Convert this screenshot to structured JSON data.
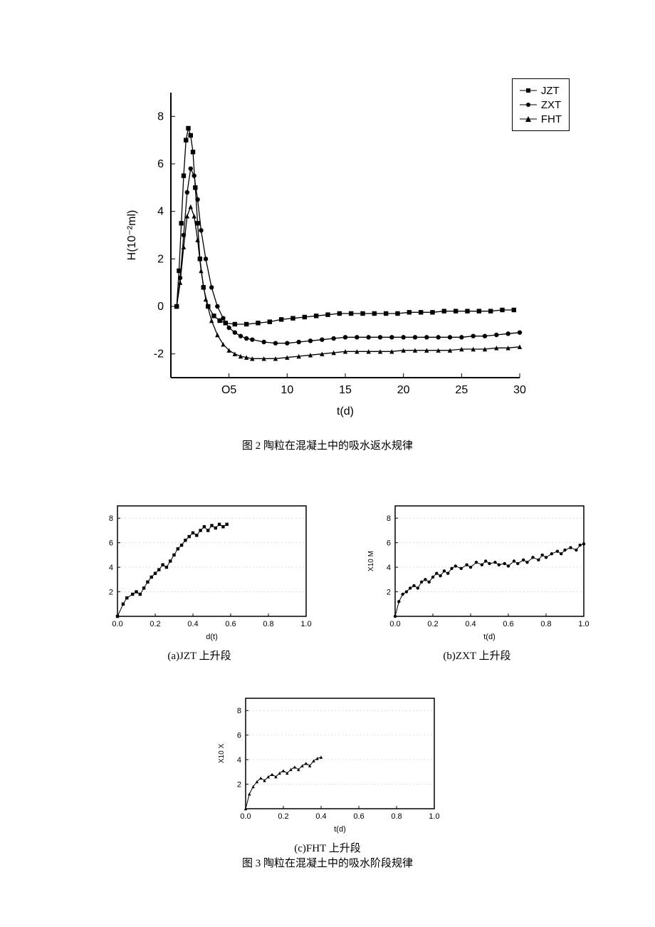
{
  "main_chart": {
    "type": "line-scatter",
    "xlabel": "t(d)",
    "ylabel": "H(10⁻²ml)",
    "xlim": [
      0,
      30
    ],
    "ylim": [
      -3,
      9
    ],
    "xticks": [
      5,
      10,
      15,
      20,
      25,
      30
    ],
    "xtick_label_0": "O5",
    "yticks": [
      -2,
      0,
      2,
      4,
      6,
      8
    ],
    "legend": [
      {
        "marker": "square",
        "label": "JZT"
      },
      {
        "marker": "circle",
        "label": "ZXT"
      },
      {
        "marker": "triangle",
        "label": "FHT"
      }
    ],
    "series": {
      "JZT": {
        "marker": "square",
        "color": "#000000",
        "points": [
          [
            0.5,
            0
          ],
          [
            0.7,
            1.5
          ],
          [
            0.9,
            3.5
          ],
          [
            1.1,
            5.5
          ],
          [
            1.3,
            7
          ],
          [
            1.5,
            7.5
          ],
          [
            1.7,
            7.2
          ],
          [
            1.9,
            6.5
          ],
          [
            2.1,
            5
          ],
          [
            2.3,
            3.5
          ],
          [
            2.5,
            2
          ],
          [
            2.8,
            0.8
          ],
          [
            3.2,
            0
          ],
          [
            3.7,
            -0.4
          ],
          [
            4.2,
            -0.6
          ],
          [
            4.7,
            -0.7
          ],
          [
            5.5,
            -0.75
          ],
          [
            6.5,
            -0.75
          ],
          [
            7.5,
            -0.7
          ],
          [
            8.5,
            -0.65
          ],
          [
            9.5,
            -0.55
          ],
          [
            10.5,
            -0.5
          ],
          [
            11.5,
            -0.45
          ],
          [
            12.5,
            -0.4
          ],
          [
            13.5,
            -0.35
          ],
          [
            14.5,
            -0.3
          ],
          [
            15.5,
            -0.3
          ],
          [
            16.5,
            -0.3
          ],
          [
            17.5,
            -0.3
          ],
          [
            18.5,
            -0.3
          ],
          [
            19.5,
            -0.3
          ],
          [
            20.5,
            -0.25
          ],
          [
            21.5,
            -0.25
          ],
          [
            22.5,
            -0.25
          ],
          [
            23.5,
            -0.2
          ],
          [
            24.5,
            -0.2
          ],
          [
            25.5,
            -0.2
          ],
          [
            26.5,
            -0.2
          ],
          [
            27.5,
            -0.2
          ],
          [
            28.5,
            -0.15
          ],
          [
            29.5,
            -0.15
          ]
        ]
      },
      "ZXT": {
        "marker": "circle",
        "color": "#000000",
        "points": [
          [
            0.5,
            0
          ],
          [
            0.8,
            1.2
          ],
          [
            1.1,
            3
          ],
          [
            1.4,
            4.8
          ],
          [
            1.7,
            5.8
          ],
          [
            2,
            5.5
          ],
          [
            2.3,
            4.5
          ],
          [
            2.6,
            3.2
          ],
          [
            3,
            2
          ],
          [
            3.5,
            0.8
          ],
          [
            4,
            0
          ],
          [
            4.5,
            -0.5
          ],
          [
            5,
            -0.9
          ],
          [
            5.5,
            -1.1
          ],
          [
            6,
            -1.25
          ],
          [
            6.5,
            -1.35
          ],
          [
            7,
            -1.4
          ],
          [
            8,
            -1.5
          ],
          [
            9,
            -1.55
          ],
          [
            10,
            -1.55
          ],
          [
            11,
            -1.5
          ],
          [
            12,
            -1.45
          ],
          [
            13,
            -1.4
          ],
          [
            14,
            -1.35
          ],
          [
            15,
            -1.3
          ],
          [
            16,
            -1.3
          ],
          [
            17,
            -1.3
          ],
          [
            18,
            -1.3
          ],
          [
            19,
            -1.3
          ],
          [
            20,
            -1.3
          ],
          [
            21,
            -1.3
          ],
          [
            22,
            -1.3
          ],
          [
            23,
            -1.3
          ],
          [
            24,
            -1.3
          ],
          [
            25,
            -1.3
          ],
          [
            26,
            -1.25
          ],
          [
            27,
            -1.25
          ],
          [
            28,
            -1.2
          ],
          [
            29,
            -1.15
          ],
          [
            30,
            -1.1
          ]
        ]
      },
      "FHT": {
        "marker": "triangle",
        "color": "#000000",
        "points": [
          [
            0.5,
            0
          ],
          [
            0.8,
            1
          ],
          [
            1.1,
            2.5
          ],
          [
            1.4,
            3.8
          ],
          [
            1.7,
            4.2
          ],
          [
            2,
            3.8
          ],
          [
            2.3,
            2.8
          ],
          [
            2.6,
            1.5
          ],
          [
            3,
            0.3
          ],
          [
            3.5,
            -0.6
          ],
          [
            4,
            -1.2
          ],
          [
            4.5,
            -1.6
          ],
          [
            5,
            -1.85
          ],
          [
            5.5,
            -2
          ],
          [
            6,
            -2.1
          ],
          [
            6.5,
            -2.15
          ],
          [
            7,
            -2.2
          ],
          [
            8,
            -2.2
          ],
          [
            9,
            -2.2
          ],
          [
            10,
            -2.15
          ],
          [
            11,
            -2.1
          ],
          [
            12,
            -2.05
          ],
          [
            13,
            -2
          ],
          [
            14,
            -1.95
          ],
          [
            15,
            -1.9
          ],
          [
            16,
            -1.9
          ],
          [
            17,
            -1.9
          ],
          [
            18,
            -1.9
          ],
          [
            19,
            -1.9
          ],
          [
            20,
            -1.85
          ],
          [
            21,
            -1.85
          ],
          [
            22,
            -1.85
          ],
          [
            23,
            -1.85
          ],
          [
            24,
            -1.85
          ],
          [
            25,
            -1.8
          ],
          [
            26,
            -1.8
          ],
          [
            27,
            -1.8
          ],
          [
            28,
            -1.75
          ],
          [
            29,
            -1.75
          ],
          [
            30,
            -1.7
          ]
        ]
      }
    },
    "colors": {
      "axis": "#000000",
      "background": "#ffffff",
      "grid": "#dddddd"
    }
  },
  "caption_fig2": "图 2 陶粒在混凝土中的吸水返水规律",
  "sub_a": {
    "label": "(a)JZT 上升段",
    "type": "line-scatter",
    "marker": "square",
    "xlabel": "d(t)",
    "ylabel": "",
    "xlim": [
      0,
      1
    ],
    "ylim": [
      0,
      9
    ],
    "xticks": [
      0.0,
      0.2,
      0.4,
      0.6,
      0.8,
      1.0
    ],
    "yticks": [
      2,
      4,
      6,
      8
    ],
    "points": [
      [
        0,
        0
      ],
      [
        0.03,
        1
      ],
      [
        0.05,
        1.5
      ],
      [
        0.08,
        1.8
      ],
      [
        0.1,
        2
      ],
      [
        0.12,
        1.8
      ],
      [
        0.14,
        2.3
      ],
      [
        0.16,
        2.8
      ],
      [
        0.18,
        3.2
      ],
      [
        0.2,
        3.5
      ],
      [
        0.22,
        3.8
      ],
      [
        0.24,
        4.2
      ],
      [
        0.26,
        4
      ],
      [
        0.28,
        4.5
      ],
      [
        0.3,
        5
      ],
      [
        0.32,
        5.5
      ],
      [
        0.34,
        5.8
      ],
      [
        0.36,
        6.2
      ],
      [
        0.38,
        6.5
      ],
      [
        0.4,
        6.8
      ],
      [
        0.42,
        6.6
      ],
      [
        0.44,
        7
      ],
      [
        0.46,
        7.3
      ],
      [
        0.48,
        7
      ],
      [
        0.5,
        7.4
      ],
      [
        0.52,
        7.2
      ],
      [
        0.54,
        7.5
      ],
      [
        0.56,
        7.3
      ],
      [
        0.58,
        7.5
      ]
    ],
    "grid_color": "#dddddd",
    "marker_color": "#000000"
  },
  "sub_b": {
    "label": "(b)ZXT 上升段",
    "type": "line-scatter",
    "marker": "circle",
    "xlabel": "t(d)",
    "ylabel": "X10 M",
    "xlim": [
      0,
      1
    ],
    "ylim": [
      0,
      9
    ],
    "xticks": [
      0.0,
      0.2,
      0.4,
      0.6,
      0.8,
      1.0
    ],
    "yticks": [
      2,
      4,
      6,
      8
    ],
    "points": [
      [
        0,
        0
      ],
      [
        0.02,
        1.2
      ],
      [
        0.04,
        1.8
      ],
      [
        0.06,
        2
      ],
      [
        0.08,
        2.3
      ],
      [
        0.1,
        2.5
      ],
      [
        0.12,
        2.3
      ],
      [
        0.14,
        2.8
      ],
      [
        0.16,
        3
      ],
      [
        0.18,
        2.8
      ],
      [
        0.2,
        3.2
      ],
      [
        0.22,
        3.5
      ],
      [
        0.24,
        3.3
      ],
      [
        0.26,
        3.7
      ],
      [
        0.28,
        3.5
      ],
      [
        0.3,
        3.9
      ],
      [
        0.32,
        4.1
      ],
      [
        0.35,
        3.9
      ],
      [
        0.38,
        4.2
      ],
      [
        0.4,
        4
      ],
      [
        0.43,
        4.4
      ],
      [
        0.46,
        4.2
      ],
      [
        0.48,
        4.5
      ],
      [
        0.5,
        4.3
      ],
      [
        0.53,
        4.4
      ],
      [
        0.55,
        4.2
      ],
      [
        0.58,
        4.3
      ],
      [
        0.6,
        4.1
      ],
      [
        0.63,
        4.5
      ],
      [
        0.65,
        4.3
      ],
      [
        0.68,
        4.6
      ],
      [
        0.7,
        4.4
      ],
      [
        0.73,
        4.8
      ],
      [
        0.76,
        4.6
      ],
      [
        0.78,
        5
      ],
      [
        0.8,
        4.8
      ],
      [
        0.83,
        5.1
      ],
      [
        0.86,
        5.3
      ],
      [
        0.88,
        5.1
      ],
      [
        0.9,
        5.4
      ],
      [
        0.93,
        5.6
      ],
      [
        0.96,
        5.4
      ],
      [
        0.98,
        5.8
      ],
      [
        1,
        5.9
      ]
    ],
    "grid_color": "#dddddd",
    "marker_color": "#000000"
  },
  "sub_c": {
    "label": "(c)FHT 上升段",
    "type": "line-scatter",
    "marker": "triangle",
    "xlabel": "t(d)",
    "ylabel": "X10 X",
    "xlim": [
      0,
      1
    ],
    "ylim": [
      0,
      9
    ],
    "xticks": [
      0.0,
      0.2,
      0.4,
      0.6,
      0.8,
      1.0
    ],
    "yticks": [
      2,
      4,
      6,
      8
    ],
    "points": [
      [
        0,
        0
      ],
      [
        0.02,
        1.2
      ],
      [
        0.04,
        1.8
      ],
      [
        0.06,
        2.2
      ],
      [
        0.08,
        2.5
      ],
      [
        0.1,
        2.3
      ],
      [
        0.12,
        2.6
      ],
      [
        0.14,
        2.8
      ],
      [
        0.16,
        2.6
      ],
      [
        0.18,
        2.9
      ],
      [
        0.2,
        3.1
      ],
      [
        0.22,
        2.9
      ],
      [
        0.24,
        3.2
      ],
      [
        0.26,
        3.4
      ],
      [
        0.28,
        3.2
      ],
      [
        0.3,
        3.5
      ],
      [
        0.32,
        3.7
      ],
      [
        0.34,
        3.5
      ],
      [
        0.36,
        3.9
      ],
      [
        0.38,
        4.1
      ],
      [
        0.4,
        4.2
      ]
    ],
    "grid_color": "#dddddd",
    "marker_color": "#000000"
  },
  "caption_fig3": "图 3 陶粒在混凝土中的吸水阶段规律"
}
